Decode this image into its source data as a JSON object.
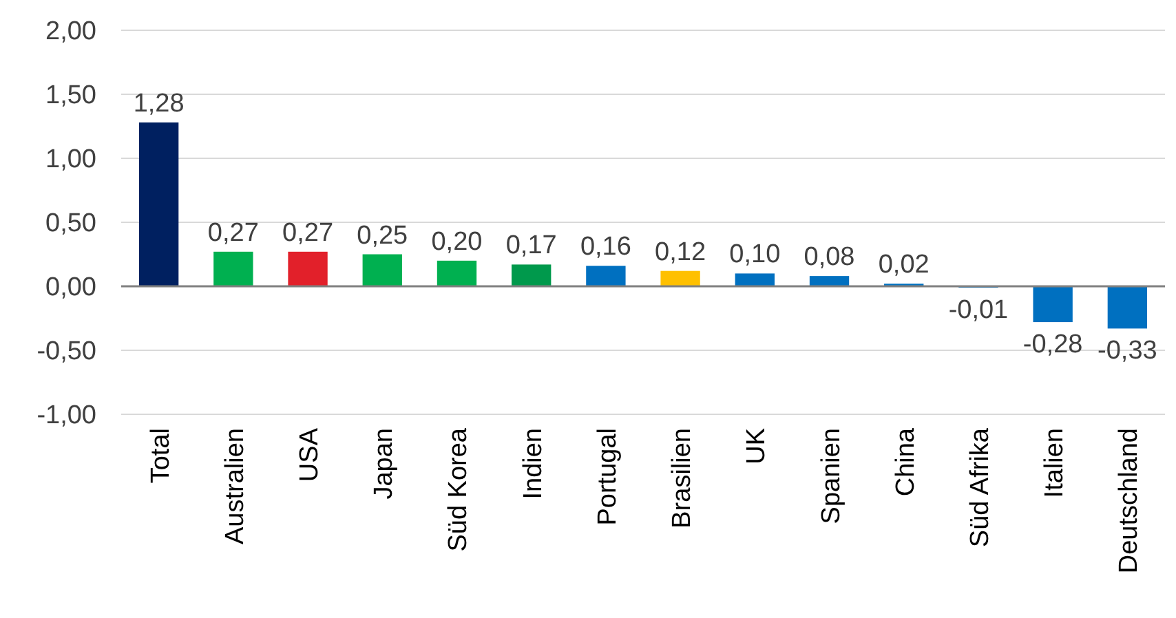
{
  "chart_data": {
    "type": "bar",
    "categories": [
      "Total",
      "Australien",
      "USA",
      "Japan",
      "Süd Korea",
      "Indien",
      "Portugal",
      "Brasilien",
      "UK",
      "Spanien",
      "China",
      "Süd Afrika",
      "Italien",
      "Deutschland"
    ],
    "values": [
      1.28,
      0.27,
      0.27,
      0.25,
      0.2,
      0.17,
      0.16,
      0.12,
      0.1,
      0.08,
      0.02,
      -0.01,
      -0.28,
      -0.33
    ],
    "colors": [
      "#002060",
      "#00b050",
      "#e2202a",
      "#00b050",
      "#00b050",
      "#00994c",
      "#0070c0",
      "#ffc000",
      "#0070c0",
      "#0070c0",
      "#0070c0",
      "#0070c0",
      "#0070c0",
      "#0070c0"
    ],
    "value_labels": [
      "1,28",
      "0,27",
      "0,27",
      "0,25",
      "0,20",
      "0,17",
      "0,16",
      "0,12",
      "0,10",
      "0,08",
      "0,02",
      "-0,01",
      "-0,28",
      "-0,33"
    ],
    "ylim": [
      -1,
      2
    ],
    "yticks": [
      {
        "value": -1,
        "label": "-1,00"
      },
      {
        "value": -0.5,
        "label": "-0,50"
      },
      {
        "value": 0,
        "label": "0,00"
      },
      {
        "value": 0.5,
        "label": "0,50"
      },
      {
        "value": 1,
        "label": "1,00"
      },
      {
        "value": 1.5,
        "label": "1,50"
      },
      {
        "value": 2,
        "label": "2,00"
      }
    ],
    "grid": "y"
  }
}
